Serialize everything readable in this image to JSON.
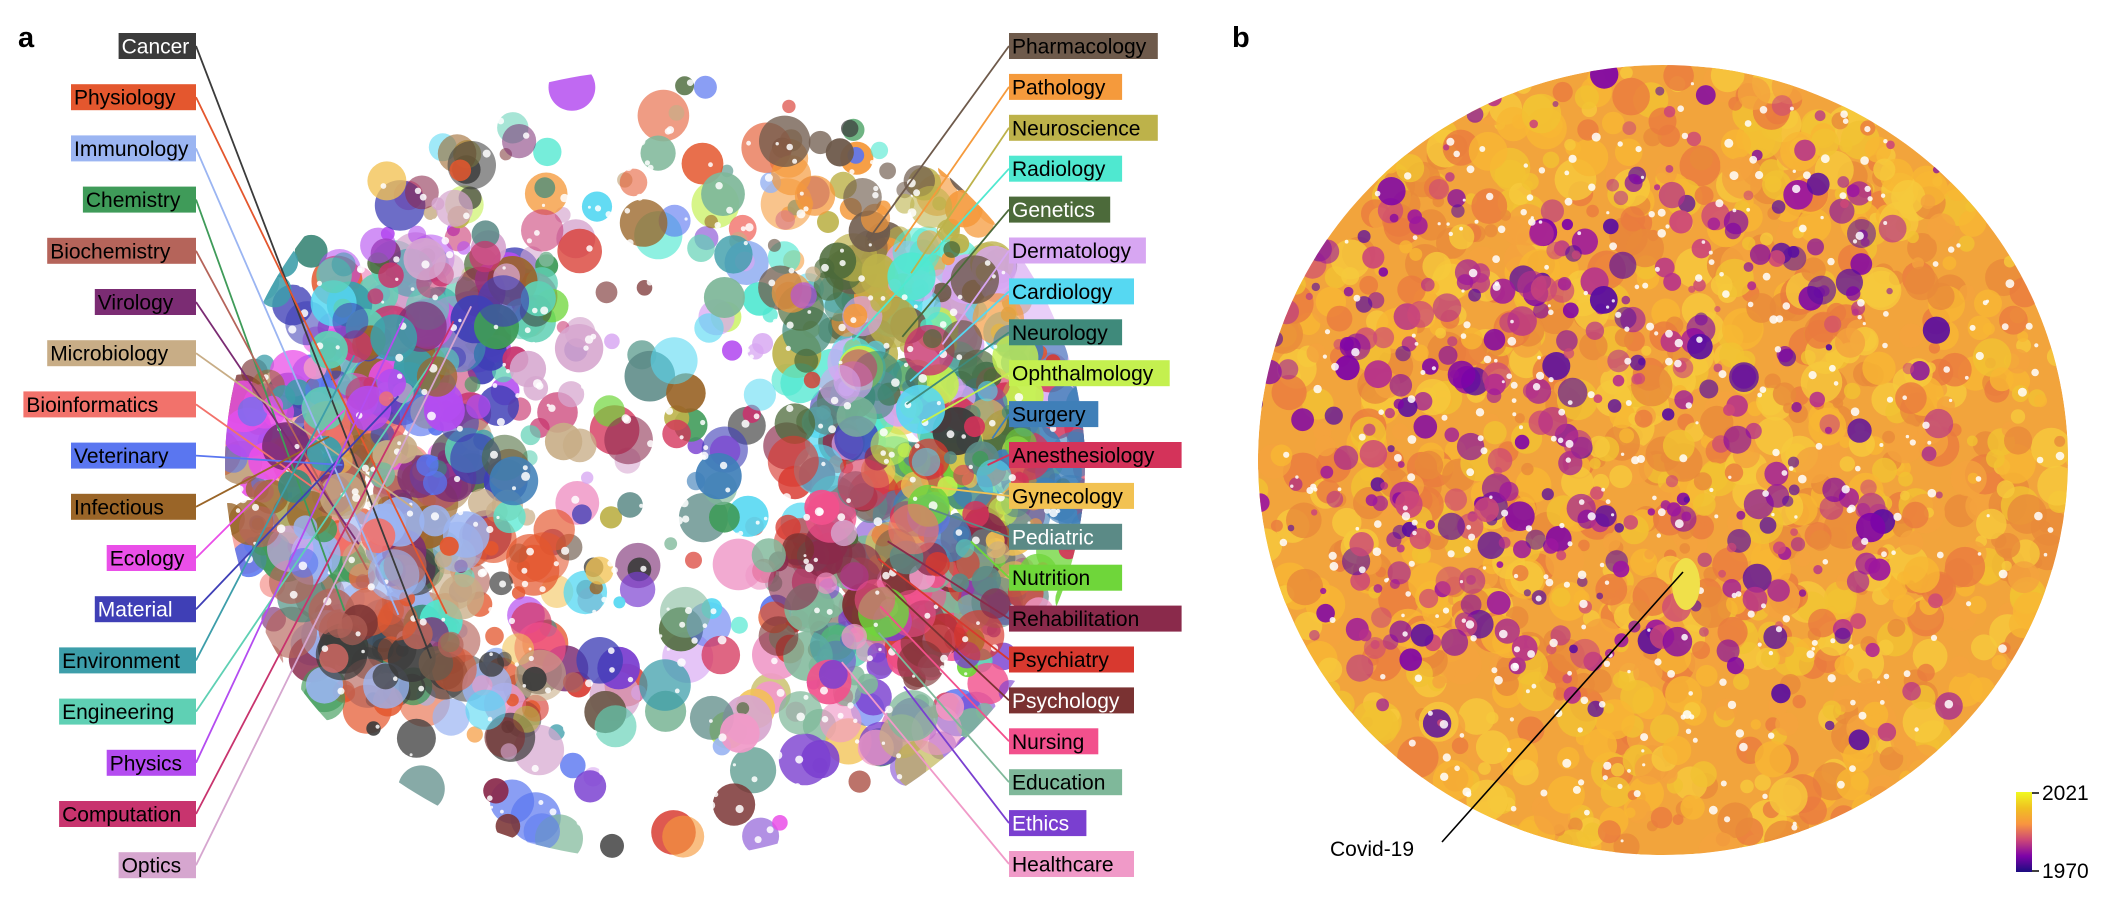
{
  "panels": {
    "a": "a",
    "b": "b"
  },
  "chart_data": [
    {
      "type": "scatter",
      "panel": "a",
      "title": "",
      "description_kind": "embedding map colored by field",
      "labels_left": [
        {
          "name": "Cancer",
          "color": "#3b3b3b",
          "text_color": "#ffffff"
        },
        {
          "name": "Physiology",
          "color": "#e4572e",
          "text_color": "#000000"
        },
        {
          "name": "Immunology",
          "color": "#9bb5f2",
          "text_color": "#000000"
        },
        {
          "name": "Chemistry",
          "color": "#3f9b59",
          "text_color": "#000000"
        },
        {
          "name": "Biochemistry",
          "color": "#b5645a",
          "text_color": "#000000"
        },
        {
          "name": "Virology",
          "color": "#7b2c73",
          "text_color": "#000000"
        },
        {
          "name": "Microbiology",
          "color": "#c8ad86",
          "text_color": "#000000"
        },
        {
          "name": "Bioinformatics",
          "color": "#f2726b",
          "text_color": "#000000"
        },
        {
          "name": "Veterinary",
          "color": "#5a76f0",
          "text_color": "#000000"
        },
        {
          "name": "Infectious",
          "color": "#9a6528",
          "text_color": "#000000"
        },
        {
          "name": "Ecology",
          "color": "#ea4fe8",
          "text_color": "#000000"
        },
        {
          "name": "Material",
          "color": "#3f3fb6",
          "text_color": "#ffffff"
        },
        {
          "name": "Environment",
          "color": "#3d9eaa",
          "text_color": "#000000"
        },
        {
          "name": "Engineering",
          "color": "#5fd0b4",
          "text_color": "#000000"
        },
        {
          "name": "Physics",
          "color": "#b44cf0",
          "text_color": "#000000"
        },
        {
          "name": "Computation",
          "color": "#c8346e",
          "text_color": "#000000"
        },
        {
          "name": "Optics",
          "color": "#d6a6cf",
          "text_color": "#000000"
        }
      ],
      "labels_right": [
        {
          "name": "Pharmacology",
          "color": "#6e5a4b",
          "text_color": "#000000"
        },
        {
          "name": "Pathology",
          "color": "#f59a3c",
          "text_color": "#000000"
        },
        {
          "name": "Neuroscience",
          "color": "#bdb24a",
          "text_color": "#000000"
        },
        {
          "name": "Radiology",
          "color": "#4fe8d0",
          "text_color": "#000000"
        },
        {
          "name": "Genetics",
          "color": "#4c6a3a",
          "text_color": "#ffffff"
        },
        {
          "name": "Dermatology",
          "color": "#d7a6f2",
          "text_color": "#000000"
        },
        {
          "name": "Cardiology",
          "color": "#56d8f2",
          "text_color": "#000000"
        },
        {
          "name": "Neurology",
          "color": "#3f8a7b",
          "text_color": "#000000"
        },
        {
          "name": "Ophthalmology",
          "color": "#c4f04f",
          "text_color": "#000000"
        },
        {
          "name": "Surgery",
          "color": "#3f7fb8",
          "text_color": "#000000"
        },
        {
          "name": "Anesthesiology",
          "color": "#d4335a",
          "text_color": "#000000"
        },
        {
          "name": "Gynecology",
          "color": "#f2c252",
          "text_color": "#000000"
        },
        {
          "name": "Pediatric",
          "color": "#5b8a86",
          "text_color": "#ffffff"
        },
        {
          "name": "Nutrition",
          "color": "#6fd63a",
          "text_color": "#000000"
        },
        {
          "name": "Rehabilitation",
          "color": "#8a2a4b",
          "text_color": "#000000"
        },
        {
          "name": "Psychiatry",
          "color": "#d8392f",
          "text_color": "#000000"
        },
        {
          "name": "Psychology",
          "color": "#7a3232",
          "text_color": "#ffffff"
        },
        {
          "name": "Nursing",
          "color": "#f2508c",
          "text_color": "#000000"
        },
        {
          "name": "Education",
          "color": "#7fb89a",
          "text_color": "#000000"
        },
        {
          "name": "Ethics",
          "color": "#7a3fd0",
          "text_color": "#ffffff"
        },
        {
          "name": "Healthcare",
          "color": "#f09ac8",
          "text_color": "#000000"
        }
      ]
    },
    {
      "type": "scatter",
      "panel": "b",
      "title": "",
      "description_kind": "embedding map colored by publication year",
      "colorbar": {
        "min": 1970,
        "max": 2021,
        "min_label": "1970",
        "max_label": "2021",
        "colors": [
          "#1b0c80",
          "#7e03a8",
          "#cc4778",
          "#f89540",
          "#f0c021",
          "#f0f921"
        ]
      },
      "annotation": "Covid-19"
    }
  ]
}
